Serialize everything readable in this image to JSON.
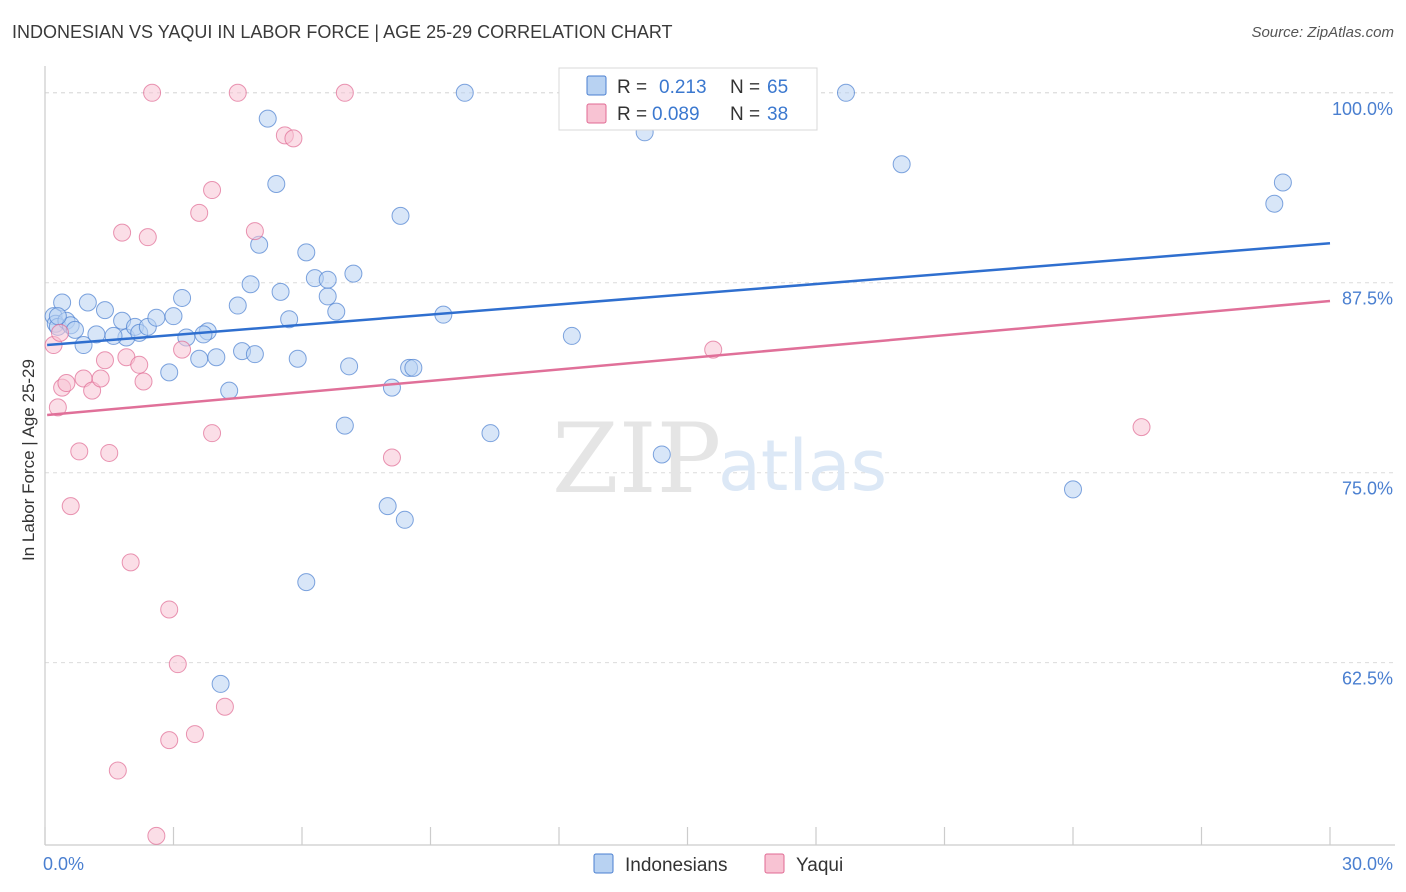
{
  "title": "INDONESIAN VS YAQUI IN LABOR FORCE | AGE 25-29 CORRELATION CHART",
  "source": "Source: ZipAtlas.com",
  "watermark": {
    "part1": "ZIP",
    "part2": "atlas"
  },
  "colors": {
    "blue": "#4a7fd0",
    "blueFill": "#b8d2f2",
    "pink": "#e06a93",
    "pinkFill": "#f8c3d3",
    "blueLine": "#2f6fcf",
    "pinkLine": "#e07099"
  },
  "legend": {
    "rows": [
      {
        "r_label": "R =",
        "r_value": "0.213",
        "n_label": "N =",
        "n_value": "65"
      },
      {
        "r_label": "R =",
        "r_value": "0.089",
        "n_label": "N =",
        "n_value": "38"
      }
    ]
  },
  "chart_data": {
    "type": "scatter",
    "xlabel": "",
    "ylabel": "In Labor Force | Age 25-29",
    "xlim": [
      0,
      30
    ],
    "ylim": [
      50.5,
      101.5
    ],
    "x_tick_labels": [
      {
        "value": 0,
        "label": "0.0%"
      },
      {
        "value": 30,
        "label": "30.0%"
      }
    ],
    "y_tick_labels": [
      {
        "value": 100,
        "label": "100.0%"
      },
      {
        "value": 87.5,
        "label": "87.5%"
      },
      {
        "value": 75,
        "label": "75.0%"
      },
      {
        "value": 62.5,
        "label": "62.5%"
      }
    ],
    "series": [
      {
        "name": "Indonesians",
        "trend": {
          "x": [
            0.05,
            30
          ],
          "y": [
            83.4,
            90.1
          ]
        },
        "points": [
          [
            0.2,
            85.3
          ],
          [
            0.25,
            84.8
          ],
          [
            0.3,
            84.6
          ],
          [
            0.4,
            86.2
          ],
          [
            0.5,
            85.0
          ],
          [
            0.6,
            84.7
          ],
          [
            0.7,
            84.4
          ],
          [
            0.9,
            83.4
          ],
          [
            1.0,
            86.2
          ],
          [
            1.2,
            84.1
          ],
          [
            1.4,
            85.7
          ],
          [
            1.8,
            85.0
          ],
          [
            1.9,
            83.9
          ],
          [
            1.6,
            84.0
          ],
          [
            2.1,
            84.6
          ],
          [
            2.2,
            84.2
          ],
          [
            2.4,
            84.6
          ],
          [
            2.6,
            85.2
          ],
          [
            2.9,
            81.6
          ],
          [
            3.0,
            85.3
          ],
          [
            3.2,
            86.5
          ],
          [
            3.3,
            83.9
          ],
          [
            3.6,
            82.5
          ],
          [
            3.8,
            84.3
          ],
          [
            3.7,
            84.1
          ],
          [
            4.0,
            82.6
          ],
          [
            4.3,
            80.4
          ],
          [
            4.5,
            86.0
          ],
          [
            4.6,
            83.0
          ],
          [
            4.8,
            87.4
          ],
          [
            4.9,
            82.8
          ],
          [
            5.0,
            90.0
          ],
          [
            5.2,
            98.3
          ],
          [
            5.4,
            94.0
          ],
          [
            5.5,
            86.9
          ],
          [
            5.7,
            85.1
          ],
          [
            5.9,
            82.5
          ],
          [
            6.1,
            89.5
          ],
          [
            6.1,
            67.8
          ],
          [
            6.3,
            87.8
          ],
          [
            6.6,
            86.6
          ],
          [
            6.6,
            87.7
          ],
          [
            6.8,
            85.6
          ],
          [
            7.0,
            78.1
          ],
          [
            7.1,
            82.0
          ],
          [
            7.2,
            88.1
          ],
          [
            8.0,
            72.8
          ],
          [
            8.1,
            80.6
          ],
          [
            8.3,
            91.9
          ],
          [
            8.4,
            71.9
          ],
          [
            8.5,
            81.9
          ],
          [
            8.6,
            81.9
          ],
          [
            9.3,
            85.4
          ],
          [
            9.8,
            100.0
          ],
          [
            10.4,
            77.6
          ],
          [
            12.3,
            84.0
          ],
          [
            14.0,
            97.4
          ],
          [
            14.4,
            76.2
          ],
          [
            18.7,
            100.0
          ],
          [
            20.0,
            95.3
          ],
          [
            24.0,
            73.9
          ],
          [
            28.7,
            92.7
          ],
          [
            28.9,
            94.1
          ],
          [
            4.1,
            61.1
          ],
          [
            0.3,
            85.3
          ]
        ]
      },
      {
        "name": "Yaqui",
        "trend": {
          "x": [
            0.05,
            30
          ],
          "y": [
            78.8,
            86.3
          ]
        },
        "points": [
          [
            0.2,
            83.4
          ],
          [
            0.3,
            79.3
          ],
          [
            0.4,
            80.6
          ],
          [
            0.5,
            80.9
          ],
          [
            0.6,
            72.8
          ],
          [
            0.8,
            76.4
          ],
          [
            0.9,
            81.2
          ],
          [
            1.1,
            80.4
          ],
          [
            1.3,
            81.2
          ],
          [
            1.4,
            82.4
          ],
          [
            1.5,
            76.3
          ],
          [
            1.8,
            90.8
          ],
          [
            1.9,
            82.6
          ],
          [
            2.0,
            69.1
          ],
          [
            2.2,
            82.1
          ],
          [
            2.3,
            81.0
          ],
          [
            2.4,
            90.5
          ],
          [
            2.5,
            100.0
          ],
          [
            2.6,
            51.1
          ],
          [
            2.9,
            66.0
          ],
          [
            2.9,
            57.4
          ],
          [
            3.1,
            62.4
          ],
          [
            3.2,
            83.1
          ],
          [
            3.6,
            92.1
          ],
          [
            3.9,
            93.6
          ],
          [
            3.9,
            77.6
          ],
          [
            4.2,
            59.6
          ],
          [
            4.5,
            100.0
          ],
          [
            4.9,
            90.9
          ],
          [
            5.6,
            97.2
          ],
          [
            5.8,
            97.0
          ],
          [
            7.0,
            100.0
          ],
          [
            8.1,
            76.0
          ],
          [
            15.6,
            83.1
          ],
          [
            25.6,
            78.0
          ],
          [
            1.7,
            55.4
          ],
          [
            3.5,
            57.8
          ],
          [
            0.35,
            84.2
          ]
        ]
      }
    ]
  },
  "bottom_legend": {
    "items": [
      "Indonesians",
      "Yaqui"
    ]
  }
}
